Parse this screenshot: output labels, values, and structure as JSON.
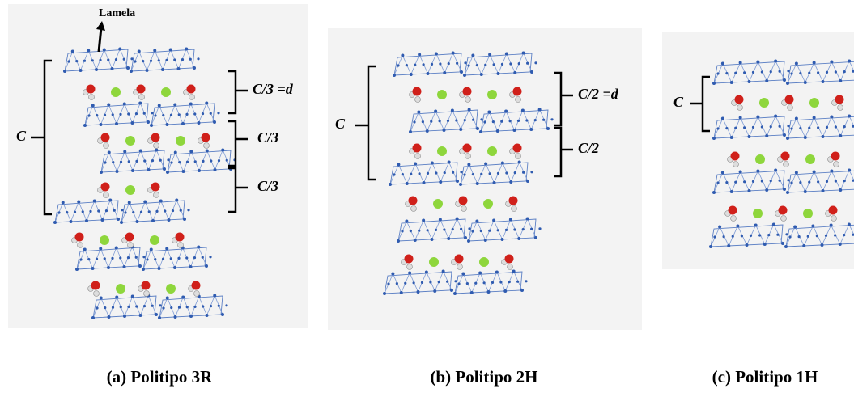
{
  "panels": [
    {
      "caption": "(a) Politipo 3R",
      "label": "Lamela",
      "c_label": "C",
      "spacings": [
        "C/3 =d",
        "C/3",
        "C/3"
      ]
    },
    {
      "caption": "(b) Politipo 2H",
      "c_label": "C",
      "spacings": [
        "C/2 =d",
        "C/2"
      ]
    },
    {
      "caption": "(c) Politipo 1H",
      "c_label": "C"
    }
  ]
}
